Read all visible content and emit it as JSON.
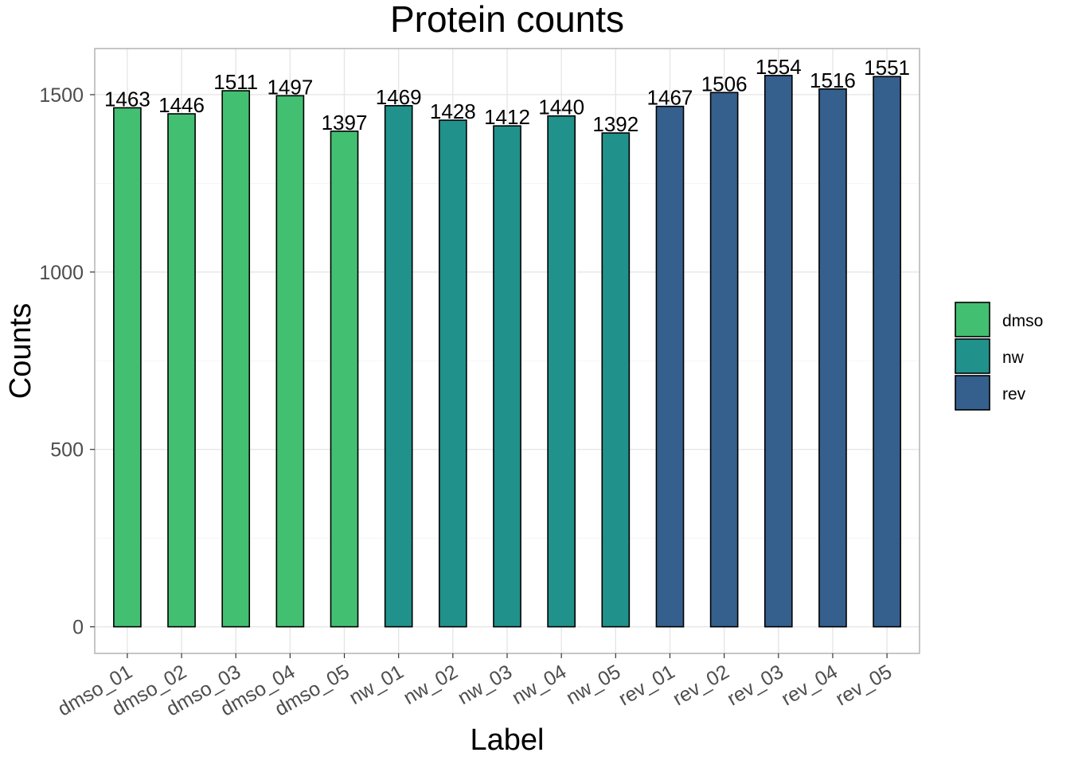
{
  "chart_data": {
    "type": "bar",
    "title": "Protein counts",
    "xlabel": "Label",
    "ylabel": "Counts",
    "categories": [
      "dmso_01",
      "dmso_02",
      "dmso_03",
      "dmso_04",
      "dmso_05",
      "nw_01",
      "nw_02",
      "nw_03",
      "nw_04",
      "nw_05",
      "rev_01",
      "rev_02",
      "rev_03",
      "rev_04",
      "rev_05"
    ],
    "values": [
      1463,
      1446,
      1511,
      1497,
      1397,
      1469,
      1428,
      1412,
      1440,
      1392,
      1467,
      1506,
      1554,
      1516,
      1551
    ],
    "groups": [
      "dmso",
      "dmso",
      "dmso",
      "dmso",
      "dmso",
      "nw",
      "nw",
      "nw",
      "nw",
      "nw",
      "rev",
      "rev",
      "rev",
      "rev",
      "rev"
    ],
    "ylim": [
      -75,
      1630
    ],
    "yticks": [
      0,
      500,
      1000,
      1500
    ],
    "grid": true,
    "legend": {
      "placement": "right",
      "entries": [
        {
          "name": "dmso",
          "color": "#43bf71"
        },
        {
          "name": "nw",
          "color": "#21918c"
        },
        {
          "name": "rev",
          "color": "#355f8d"
        }
      ]
    }
  }
}
